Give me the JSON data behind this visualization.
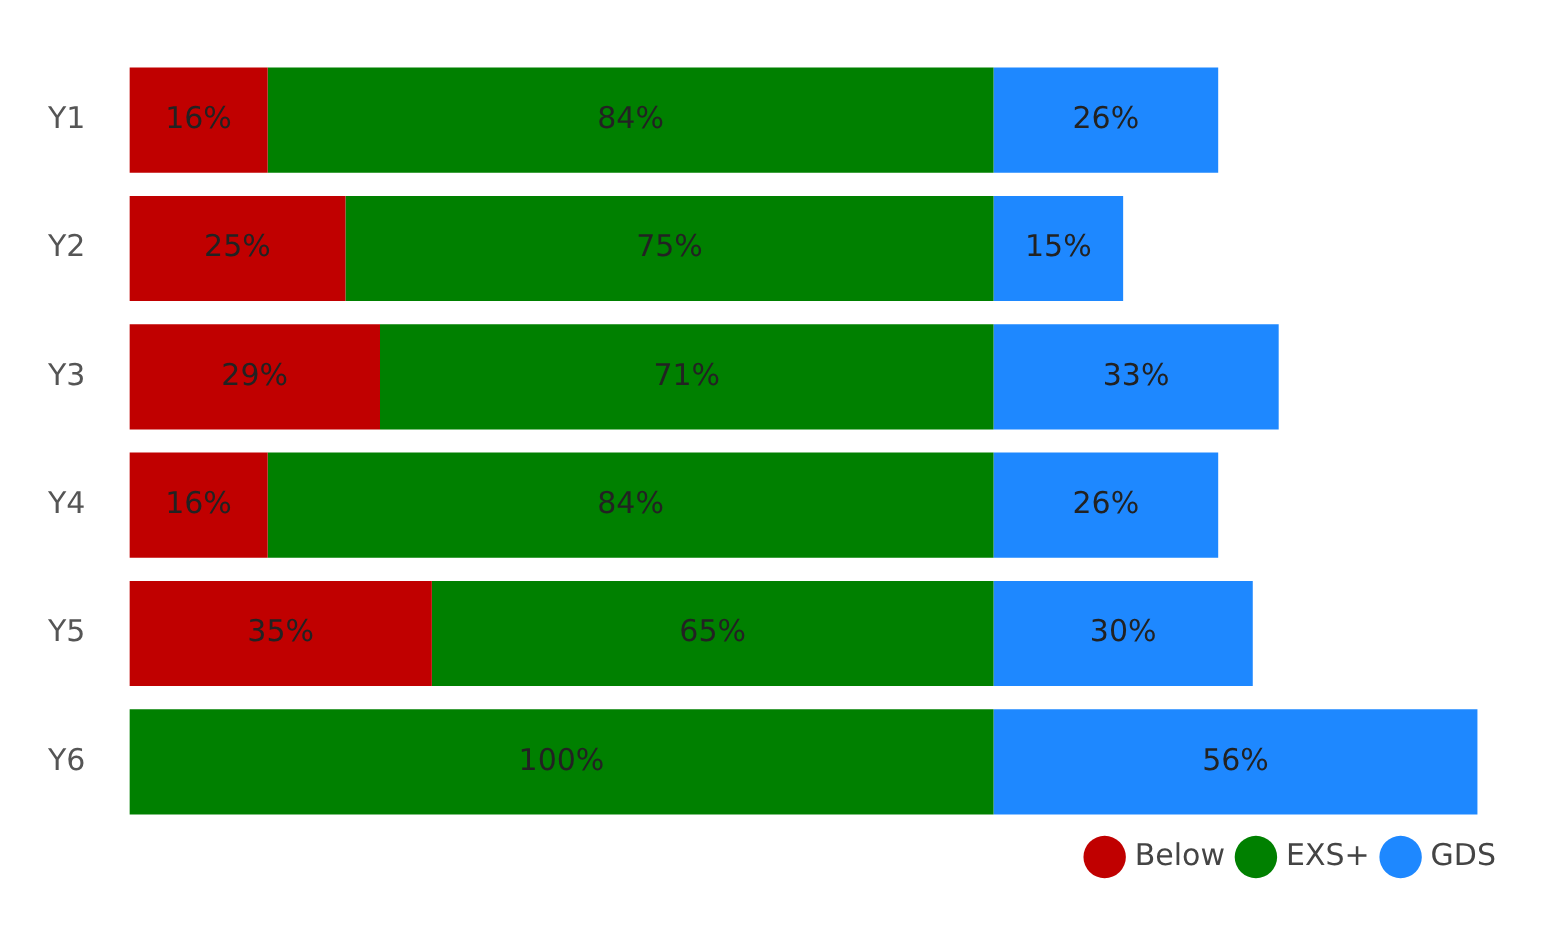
{
  "chart_data": {
    "type": "bar",
    "orientation": "horizontal",
    "stacked": true,
    "categories": [
      "Y1",
      "Y2",
      "Y3",
      "Y4",
      "Y5",
      "Y6"
    ],
    "series": [
      {
        "name": "Below",
        "color": "#c00000",
        "values": [
          16,
          25,
          29,
          16,
          35,
          null
        ],
        "value_labels": [
          "16%",
          "25%",
          "29%",
          "16%",
          "35%",
          null
        ]
      },
      {
        "name": "EXS+",
        "color": "#008000",
        "values": [
          84,
          75,
          71,
          84,
          65,
          100
        ],
        "value_labels": [
          "84%",
          "75%",
          "71%",
          "84%",
          "65%",
          "100%"
        ]
      },
      {
        "name": "GDS",
        "color": "#1e88ff",
        "values": [
          26,
          15,
          33,
          26,
          30,
          56
        ],
        "value_labels": [
          "26%",
          "15%",
          "33%",
          "26%",
          "30%",
          "56%"
        ]
      }
    ],
    "tick_labels": "y",
    "grid": false,
    "legend": "bottom right",
    "marker": "circle"
  }
}
